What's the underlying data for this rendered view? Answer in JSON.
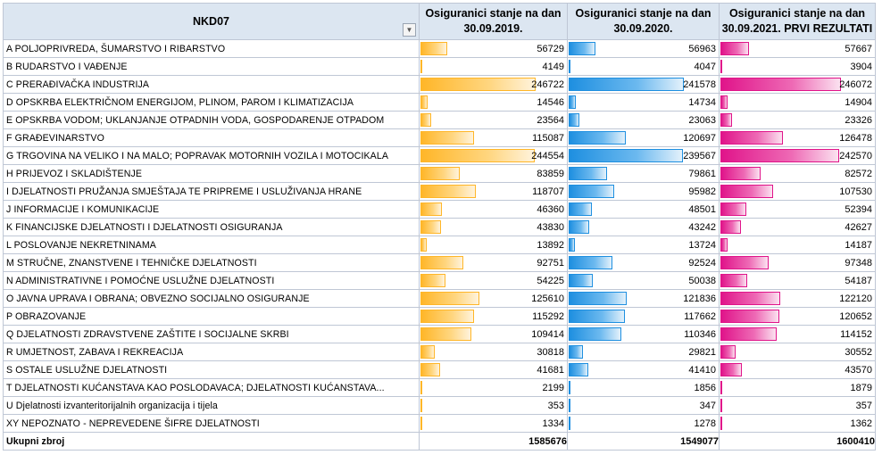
{
  "table": {
    "header_label": "NKD07",
    "columns": [
      {
        "line1": "Osiguranici stanje na dan",
        "line2": "30.09.2019."
      },
      {
        "line1": "Osiguranici stanje na dan",
        "line2": "30.09.2020."
      },
      {
        "line1": "Osiguranici stanje na dan",
        "line2": "30.09.2021. PRVI REZULTATI"
      }
    ],
    "bar_colors": [
      "#ffb628",
      "#1e8fe0",
      "#e0148a"
    ],
    "bar_max": 246722,
    "rows": [
      {
        "label": "A POLJOPRIVREDA, ŠUMARSTVO I RIBARSTVO",
        "values": [
          56729,
          56963,
          57667
        ]
      },
      {
        "label": "B RUDARSTVO I VAĐENJE",
        "values": [
          4149,
          4047,
          3904
        ]
      },
      {
        "label": "C PRERAĐIVAČKA INDUSTRIJA",
        "values": [
          246722,
          241578,
          246072
        ]
      },
      {
        "label": "D OPSKRBA ELEKTRIČNOM ENERGIJOM, PLINOM, PAROM I KLIMATIZACIJA",
        "values": [
          14546,
          14734,
          14904
        ]
      },
      {
        "label": "E OPSKRBA VODOM; UKLANJANJE OTPADNIH VODA, GOSPODARENJE OTPADOM",
        "values": [
          23564,
          23063,
          23326
        ]
      },
      {
        "label": "F GRAĐEVINARSTVO",
        "values": [
          115087,
          120697,
          126478
        ]
      },
      {
        "label": "G TRGOVINA NA VELIKO I NA MALO; POPRAVAK MOTORNIH VOZILA I MOTOCIKALA",
        "values": [
          244554,
          239567,
          242570
        ]
      },
      {
        "label": "H PRIJEVOZ I SKLADIŠTENJE",
        "values": [
          83859,
          79861,
          82572
        ]
      },
      {
        "label": "I DJELATNOSTI PRUŽANJA SMJEŠTAJA TE PRIPREME I USLUŽIVANJA HRANE",
        "values": [
          118707,
          95982,
          107530
        ]
      },
      {
        "label": "J INFORMACIJE I KOMUNIKACIJE",
        "values": [
          46360,
          48501,
          52394
        ]
      },
      {
        "label": "K FINANCIJSKE DJELATNOSTI I DJELATNOSTI OSIGURANJA",
        "values": [
          43830,
          43242,
          42627
        ]
      },
      {
        "label": "L POSLOVANJE NEKRETNINAMA",
        "values": [
          13892,
          13724,
          14187
        ]
      },
      {
        "label": "M STRUČNE, ZNANSTVENE I TEHNIČKE DJELATNOSTI",
        "values": [
          92751,
          92524,
          97348
        ]
      },
      {
        "label": "N ADMINISTRATIVNE I POMOĆNE USLUŽNE DJELATNOSTI",
        "values": [
          54225,
          50038,
          54187
        ]
      },
      {
        "label": "O JAVNA UPRAVA I OBRANA; OBVEZNO SOCIJALNO OSIGURANJE",
        "values": [
          125610,
          121836,
          122120
        ]
      },
      {
        "label": "P OBRAZOVANJE",
        "values": [
          115292,
          117662,
          120652
        ]
      },
      {
        "label": "Q DJELATNOSTI ZDRAVSTVENE ZAŠTITE I SOCIJALNE SKRBI",
        "values": [
          109414,
          110346,
          114152
        ]
      },
      {
        "label": "R UMJETNOST, ZABAVA I REKREACIJA",
        "values": [
          30818,
          29821,
          30552
        ]
      },
      {
        "label": "S OSTALE USLUŽNE DJELATNOSTI",
        "values": [
          41681,
          41410,
          43570
        ]
      },
      {
        "label": "T DJELATNOSTI KUĆANSTAVA KAO POSLODAVACA; DJELATNOSTI KUĆANSTAVA...",
        "values": [
          2199,
          1856,
          1879
        ]
      },
      {
        "label": "U Djelatnosti izvanteritorijalnih organizacija i tijela",
        "values": [
          353,
          347,
          357
        ]
      },
      {
        "label": "XY NEPOZNATO - NEPREVEDENE ŠIFRE DJELATNOSTI",
        "values": [
          1334,
          1278,
          1362
        ]
      }
    ],
    "total": {
      "label": "Ukupni zbroj",
      "values": [
        1585676,
        1549077,
        1600410
      ]
    }
  }
}
